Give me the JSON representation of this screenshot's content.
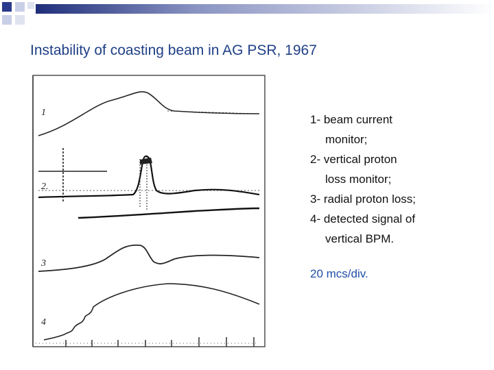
{
  "slide": {
    "title": "Instability of coasting beam in AG PSR, 1967",
    "colors": {
      "title": "#1f3f86",
      "accent_band_dark": "#1f2f7a",
      "accent_band_light": "#c8cde2",
      "scale_note": "#1f4ea6"
    }
  },
  "figure": {
    "trace_labels": [
      "1",
      "2.",
      "3",
      "4"
    ]
  },
  "legend": {
    "items": [
      {
        "first": "1- beam current",
        "cont": "monitor;"
      },
      {
        "first": "2- vertical proton",
        "cont": "loss monitor;"
      },
      {
        "first": "3- radial proton loss;",
        "cont": ""
      },
      {
        "first": "4- detected signal of",
        "cont": "vertical BPM."
      }
    ]
  },
  "scale_note": "20 mcs/div."
}
